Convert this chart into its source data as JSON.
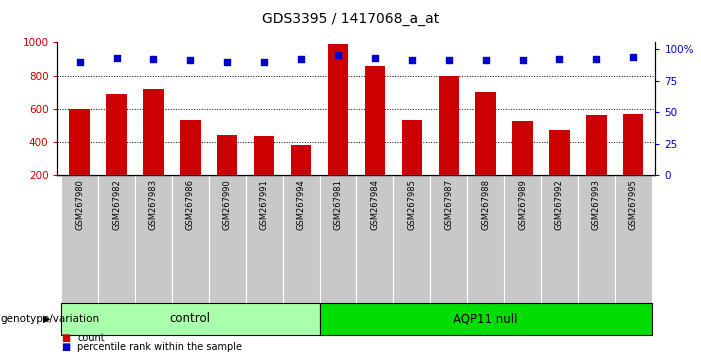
{
  "title": "GDS3395 / 1417068_a_at",
  "samples": [
    "GSM267980",
    "GSM267982",
    "GSM267983",
    "GSM267986",
    "GSM267990",
    "GSM267991",
    "GSM267994",
    "GSM267981",
    "GSM267984",
    "GSM267985",
    "GSM267987",
    "GSM267988",
    "GSM267989",
    "GSM267992",
    "GSM267993",
    "GSM267995"
  ],
  "counts": [
    600,
    690,
    720,
    535,
    445,
    435,
    380,
    990,
    860,
    530,
    800,
    700,
    525,
    475,
    560,
    570
  ],
  "percentile_ranks": [
    90,
    93,
    92,
    91,
    90,
    90,
    92,
    95,
    93,
    91,
    91,
    91,
    91,
    92,
    92,
    94
  ],
  "groups": [
    {
      "name": "control",
      "start": 0,
      "end": 7,
      "color": "#AAFFAA"
    },
    {
      "name": "AQP11 null",
      "start": 7,
      "end": 16,
      "color": "#00DD00"
    }
  ],
  "bar_color": "#CC0000",
  "dot_color": "#0000CC",
  "ylim_left": [
    200,
    1000
  ],
  "yticks_left": [
    200,
    400,
    600,
    800,
    1000
  ],
  "yticks_right": [
    0,
    25,
    50,
    75,
    100
  ],
  "ylabel_right_ticks": [
    "0",
    "25",
    "50",
    "75",
    "100%"
  ],
  "grid_values": [
    400,
    600,
    800
  ],
  "xlabel_label": "genotype/variation",
  "legend_count_label": "count",
  "legend_percentile_label": "percentile rank within the sample",
  "tick_area_color": "#C8C8C8",
  "bar_width": 0.55
}
